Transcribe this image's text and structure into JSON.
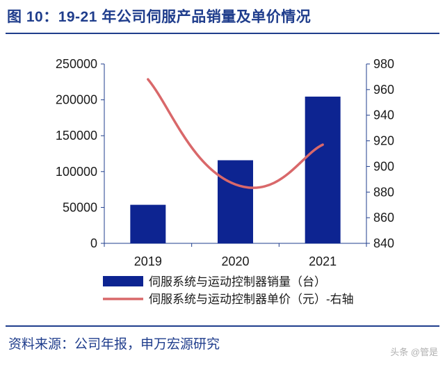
{
  "header": {
    "title": "图 10：19-21 年公司伺服产品销量及单价情况"
  },
  "footer": {
    "source": "资料来源：公司年报，申万宏源研究",
    "watermark": "头条 @管是"
  },
  "colors": {
    "accent": "#1f3d8c",
    "bar": "#0d2491",
    "line": "#d9686a",
    "axis": "#1f3d8c"
  },
  "chart_data": {
    "type": "bar+line",
    "categories": [
      "2019",
      "2020",
      "2021"
    ],
    "series": [
      {
        "name": "伺服系统与运动控制器销量（台）",
        "kind": "bar",
        "axis": "left",
        "values": [
          53700,
          115800,
          204500
        ]
      },
      {
        "name": "伺服系统与运动控制器单价（元）-右轴",
        "kind": "line",
        "axis": "right",
        "values": [
          968,
          886,
          917
        ]
      }
    ],
    "y_left": {
      "min": 0,
      "max": 250000,
      "ticks": [
        0,
        50000,
        100000,
        150000,
        200000,
        250000
      ]
    },
    "y_right": {
      "min": 840,
      "max": 980,
      "ticks": [
        840,
        860,
        880,
        900,
        920,
        940,
        960,
        980
      ]
    },
    "grid": false,
    "legend": "bottom"
  }
}
